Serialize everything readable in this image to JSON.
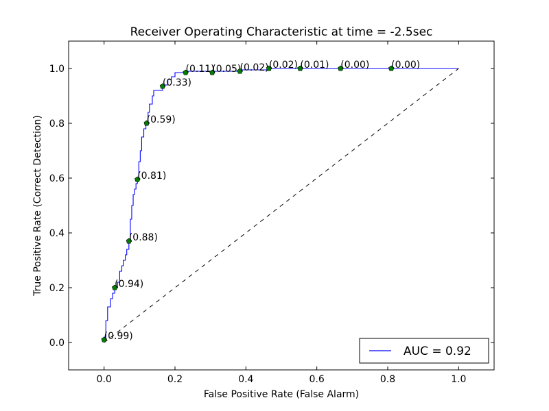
{
  "chart_data": {
    "type": "line",
    "title": "Receiver Operating Characteristic at time = -2.5sec",
    "xlabel": "False Positive Rate (False Alarm)",
    "ylabel": "True Positive Rate (Correct Detection)",
    "xlim": [
      -0.1,
      1.1
    ],
    "ylim": [
      -0.1,
      1.1
    ],
    "xticks": [
      "0.0",
      "0.2",
      "0.4",
      "0.6",
      "0.8",
      "1.0"
    ],
    "yticks": [
      "0.0",
      "0.2",
      "0.4",
      "0.6",
      "0.8",
      "1.0"
    ],
    "grid": false,
    "legend": {
      "placement": "lower-right",
      "entries": [
        "AUC = 0.92"
      ]
    },
    "series": [
      {
        "name": "AUC = 0.92",
        "color": "#0000ff",
        "style": "step",
        "points": [
          [
            0.0,
            0.0
          ],
          [
            0.0,
            0.02
          ],
          [
            0.005,
            0.02
          ],
          [
            0.005,
            0.08
          ],
          [
            0.01,
            0.08
          ],
          [
            0.01,
            0.13
          ],
          [
            0.018,
            0.13
          ],
          [
            0.018,
            0.16
          ],
          [
            0.024,
            0.16
          ],
          [
            0.024,
            0.18
          ],
          [
            0.03,
            0.18
          ],
          [
            0.03,
            0.2
          ],
          [
            0.038,
            0.2
          ],
          [
            0.038,
            0.22
          ],
          [
            0.044,
            0.22
          ],
          [
            0.044,
            0.26
          ],
          [
            0.05,
            0.26
          ],
          [
            0.05,
            0.28
          ],
          [
            0.054,
            0.28
          ],
          [
            0.054,
            0.3
          ],
          [
            0.06,
            0.3
          ],
          [
            0.06,
            0.32
          ],
          [
            0.064,
            0.32
          ],
          [
            0.064,
            0.34
          ],
          [
            0.07,
            0.34
          ],
          [
            0.07,
            0.37
          ],
          [
            0.074,
            0.37
          ],
          [
            0.074,
            0.45
          ],
          [
            0.078,
            0.45
          ],
          [
            0.078,
            0.5
          ],
          [
            0.082,
            0.5
          ],
          [
            0.082,
            0.54
          ],
          [
            0.086,
            0.54
          ],
          [
            0.086,
            0.56
          ],
          [
            0.09,
            0.56
          ],
          [
            0.09,
            0.58
          ],
          [
            0.094,
            0.58
          ],
          [
            0.094,
            0.6
          ],
          [
            0.098,
            0.6
          ],
          [
            0.098,
            0.66
          ],
          [
            0.102,
            0.66
          ],
          [
            0.102,
            0.7
          ],
          [
            0.106,
            0.7
          ],
          [
            0.106,
            0.75
          ],
          [
            0.112,
            0.75
          ],
          [
            0.112,
            0.78
          ],
          [
            0.118,
            0.78
          ],
          [
            0.118,
            0.8
          ],
          [
            0.124,
            0.8
          ],
          [
            0.124,
            0.84
          ],
          [
            0.128,
            0.84
          ],
          [
            0.128,
            0.87
          ],
          [
            0.136,
            0.87
          ],
          [
            0.136,
            0.9
          ],
          [
            0.14,
            0.9
          ],
          [
            0.14,
            0.92
          ],
          [
            0.165,
            0.92
          ],
          [
            0.165,
            0.94
          ],
          [
            0.18,
            0.94
          ],
          [
            0.18,
            0.96
          ],
          [
            0.19,
            0.96
          ],
          [
            0.19,
            0.97
          ],
          [
            0.2,
            0.97
          ],
          [
            0.2,
            0.985
          ],
          [
            0.23,
            0.985
          ],
          [
            0.23,
            0.99
          ],
          [
            0.38,
            0.99
          ],
          [
            0.38,
            0.995
          ],
          [
            0.46,
            0.995
          ],
          [
            0.46,
            1.0
          ],
          [
            1.0,
            1.0
          ]
        ]
      },
      {
        "name": "",
        "color": "#000000",
        "style": "dashed",
        "points": [
          [
            0.0,
            0.0
          ],
          [
            1.0,
            1.0
          ]
        ]
      }
    ],
    "thresholds": [
      {
        "x": 0.0,
        "y": 0.01,
        "label": "(0.99)"
      },
      {
        "x": 0.03,
        "y": 0.2,
        "label": "(0.94)"
      },
      {
        "x": 0.07,
        "y": 0.37,
        "label": "(0.88)"
      },
      {
        "x": 0.094,
        "y": 0.595,
        "label": "(0.81)"
      },
      {
        "x": 0.12,
        "y": 0.8,
        "label": "(0.59)"
      },
      {
        "x": 0.165,
        "y": 0.935,
        "label": "(0.33)"
      },
      {
        "x": 0.23,
        "y": 0.985,
        "label": "(0.11)"
      },
      {
        "x": 0.305,
        "y": 0.985,
        "label": "(0.05)"
      },
      {
        "x": 0.383,
        "y": 0.99,
        "label": "(0.02)"
      },
      {
        "x": 0.465,
        "y": 1.0,
        "label": "(0.02)"
      },
      {
        "x": 0.553,
        "y": 1.0,
        "label": "(0.01)"
      },
      {
        "x": 0.667,
        "y": 1.0,
        "label": "(0.00)"
      },
      {
        "x": 0.81,
        "y": 1.0,
        "label": "(0.00)"
      }
    ],
    "marker_color": "#008000"
  }
}
